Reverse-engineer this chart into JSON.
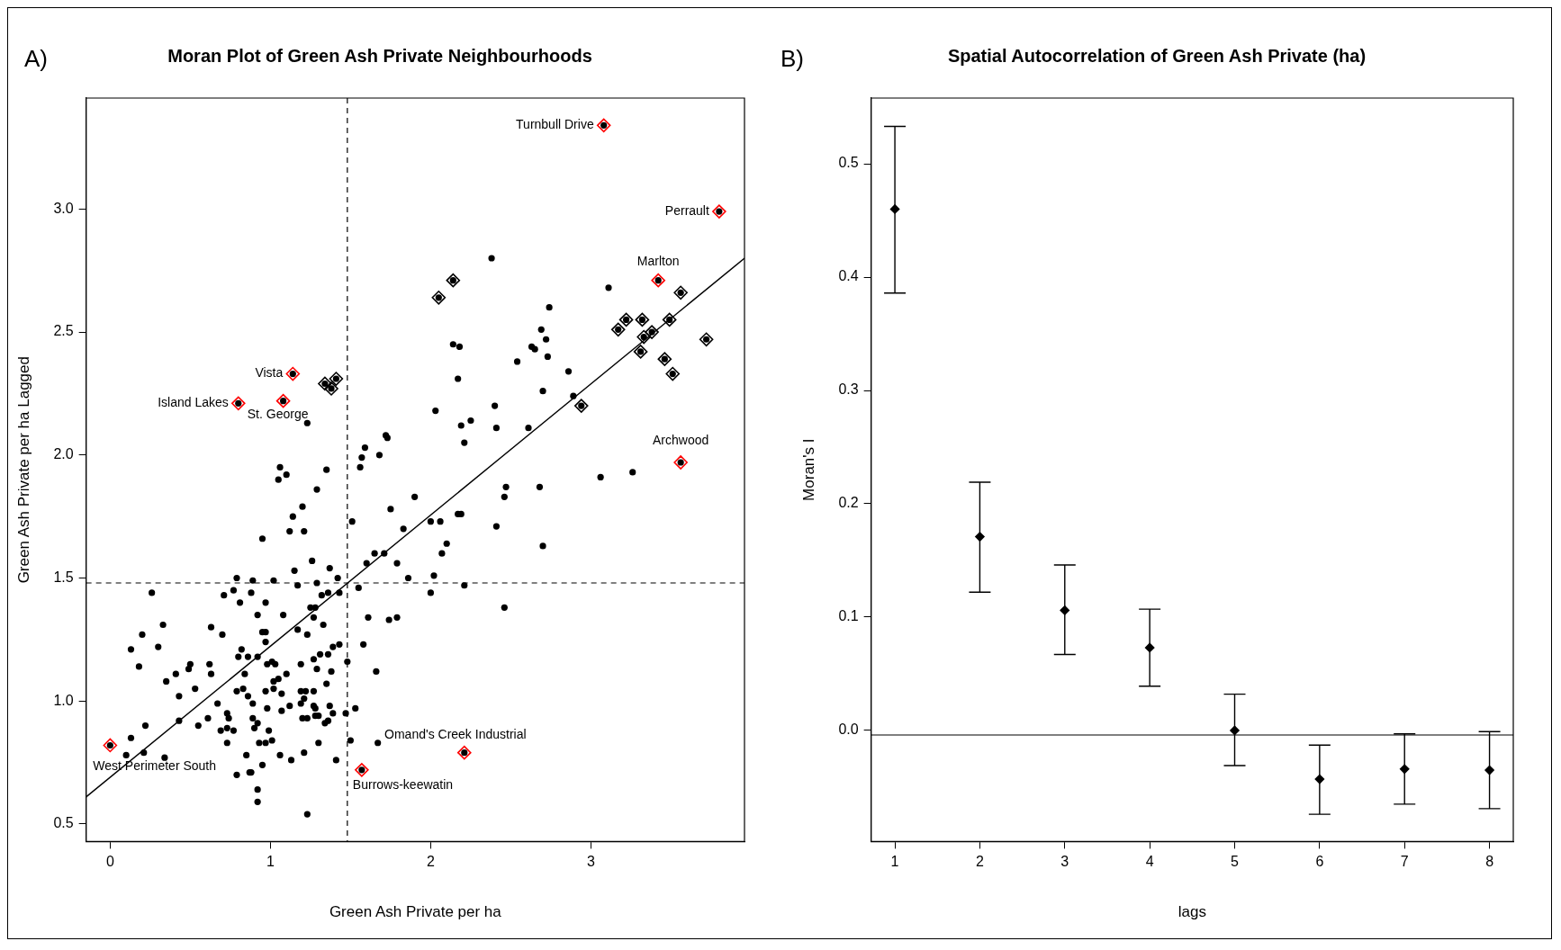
{
  "chart_data": [
    {
      "type": "scatter",
      "title": "Moran Plot of Green Ash Private Neighbourhoods",
      "xlabel": "Green Ash Private per ha",
      "ylabel": "Green Ash Private per ha Lagged",
      "xlim": [
        -0.15,
        3.958
      ],
      "xticks": [
        0,
        1,
        2,
        3
      ],
      "ylim": [
        0.429,
        3.451
      ],
      "yticks": [
        0.5,
        {
          "value": 1,
          "label": "1.0"
        },
        1.5,
        {
          "value": 2,
          "label": "2.0"
        },
        2.5,
        {
          "value": 3,
          "label": "3.0"
        }
      ],
      "ref_lines": [
        {
          "axis": "x",
          "value": 1.48,
          "line_style": "dashed"
        },
        {
          "axis": "y",
          "value": 1.48,
          "line_style": "dashed"
        }
      ],
      "annotations": [
        "A)",
        {
          "text": "Turnbull Drive",
          "x": 3.08,
          "y": 3.34
        },
        {
          "text": "Perrault",
          "x": 3.8,
          "y": 2.99
        },
        {
          "text": "Marlton",
          "x": 3.42,
          "y": 2.71
        },
        {
          "text": "Archwood",
          "x": 3.56,
          "y": 1.97
        },
        {
          "text": "Vista",
          "x": 1.14,
          "y": 2.33
        },
        {
          "text": "Island Lakes",
          "x": 0.8,
          "y": 2.21
        },
        {
          "text": "St. George",
          "x": 1.08,
          "y": 2.22
        },
        {
          "text": "West Perimeter South",
          "x": 0,
          "y": 0.82
        },
        {
          "text": "Omand's Creek Industrial",
          "x": 2.21,
          "y": 0.79
        },
        {
          "text": "Burrows-keewatin",
          "x": 1.57,
          "y": 0.72
        }
      ],
      "series": [
        {
          "color": "#000000",
          "marker": "circle",
          "x": [
            1.72,
            1.73,
            1.59,
            2.21,
            1.57,
            1.68,
            1.56,
            1.06,
            1.05,
            1.1,
            1.35,
            1.29,
            1.2,
            1.14,
            1.12,
            1.21,
            0.95,
            1.9,
            1.75,
            1.51,
            2.0,
            2.06,
            2.17,
            1.83,
            2.1,
            2.07,
            1.65,
            1.71,
            1.6,
            1.79,
            1.26,
            1.15,
            1.37,
            1.86,
            2.02,
            0.79,
            0.89,
            1.02,
            1.29,
            1.42,
            1.17,
            1.55,
            2.0,
            0.77,
            0.88,
            0.26,
            0.71,
            0.81,
            0.97,
            1.36,
            1.43,
            1.32,
            0.92,
            1.08,
            1.25,
            1.28,
            1.27,
            1.61,
            1.74,
            1.79,
            0.33,
            0.63,
            0.7,
            0.2,
            0.95,
            0.97,
            1.17,
            1.23,
            1.33,
            0.97,
            0.13,
            0.3,
            0.82,
            0.8,
            0.86,
            0.92,
            1.31,
            1.36,
            1.39,
            1.43,
            1.58,
            0.18,
            0.5,
            0.49,
            0.62,
            0.63,
            0.41,
            0.35,
            0.84,
            0.98,
            1.01,
            1.03,
            1.19,
            1.27,
            1.29,
            1.38,
            1.48,
            1.66,
            1.1,
            1.05,
            1.02,
            0.53,
            0.43,
            0.79,
            0.83,
            0.86,
            0.97,
            1.02,
            1.07,
            1.19,
            1.22,
            1.27,
            1.35,
            0.67,
            0.89,
            0.98,
            1.12,
            1.07,
            1.19,
            1.21,
            1.27,
            1.28,
            1.37,
            1.39,
            1.47,
            1.53,
            0.73,
            0.74,
            0.89,
            0.61,
            0.55,
            0.43,
            0.22,
            1.2,
            1.23,
            1.28,
            1.3,
            1.36,
            1.34,
            0.92,
            0.9,
            0.69,
            0.73,
            0.77,
            0.99,
            0.13,
            0.73,
            0.93,
            0.97,
            1.01,
            1.3,
            1.5,
            1.67,
            0.1,
            0.21,
            0.34,
            0.85,
            1.06,
            1.13,
            1.21,
            1.41,
            0.95,
            0.79,
            0.87,
            0.88,
            0.92,
            0.92,
            1.23,
            3.06,
            3.26,
            2.47,
            2.46,
            2.68,
            2.19,
            2.41,
            2.7,
            2.21,
            2.46,
            1.23,
            2.14,
            2.18,
            2.17,
            2.03,
            2.19,
            2.38,
            3.11,
            2.74,
            2.69,
            2.72,
            2.63,
            2.65,
            2.73,
            2.54,
            2.86,
            2.7,
            2.4,
            2.89,
            2.25,
            2.41,
            2.61,
            1.34,
            1.38,
            1.41,
            2.14,
            2.05,
            3.56,
            3.22,
            3.17,
            3.32,
            3.49,
            3.38,
            3.33,
            3.31,
            3.46,
            3.51,
            3.72,
            2.94,
            3.08,
            3.8,
            3.42,
            3.56,
            1.14,
            0.8,
            1.08,
            0,
            2.21,
            1.57
          ],
          "values": [
            2.08,
            2.07,
            2.03,
            2.05,
            1.99,
            2.0,
            1.95,
            1.95,
            1.9,
            1.92,
            1.94,
            1.86,
            1.79,
            1.75,
            1.69,
            1.69,
            1.66,
            1.83,
            1.78,
            1.73,
            1.73,
            1.73,
            1.76,
            1.7,
            1.64,
            1.6,
            1.6,
            1.6,
            1.56,
            1.56,
            1.57,
            1.53,
            1.54,
            1.5,
            1.51,
            1.5,
            1.49,
            1.49,
            1.48,
            1.5,
            1.47,
            1.46,
            1.44,
            1.45,
            1.44,
            1.44,
            1.43,
            1.4,
            1.4,
            1.44,
            1.44,
            1.43,
            1.35,
            1.35,
            1.38,
            1.38,
            1.34,
            1.34,
            1.33,
            1.34,
            1.31,
            1.3,
            1.27,
            1.27,
            1.28,
            1.28,
            1.29,
            1.27,
            1.31,
            1.24,
            1.21,
            1.22,
            1.21,
            1.18,
            1.18,
            1.18,
            1.19,
            1.19,
            1.22,
            1.23,
            1.23,
            1.14,
            1.15,
            1.13,
            1.15,
            1.11,
            1.11,
            1.08,
            1.11,
            1.15,
            1.16,
            1.15,
            1.15,
            1.17,
            1.13,
            1.12,
            1.16,
            1.12,
            1.11,
            1.09,
            1.08,
            1.05,
            1.02,
            1.04,
            1.05,
            1.02,
            1.04,
            1.05,
            1.03,
            1.04,
            1.04,
            1.04,
            1.07,
            0.99,
            0.99,
            0.97,
            0.98,
            0.96,
            0.99,
            1.01,
            0.98,
            0.97,
            0.98,
            0.95,
            0.95,
            0.97,
            0.95,
            0.93,
            0.93,
            0.93,
            0.9,
            0.92,
            0.9,
            0.93,
            0.93,
            0.94,
            0.94,
            0.92,
            0.91,
            0.91,
            0.89,
            0.88,
            0.89,
            0.88,
            0.88,
            0.85,
            0.83,
            0.83,
            0.83,
            0.84,
            0.83,
            0.84,
            0.83,
            0.78,
            0.79,
            0.77,
            0.78,
            0.78,
            0.76,
            0.79,
            0.76,
            0.74,
            0.7,
            0.71,
            0.71,
            0.64,
            0.59,
            0.54,
            1.91,
            1.93,
            1.87,
            1.83,
            1.87,
            1.76,
            1.71,
            1.63,
            1.47,
            1.38,
            2.13,
            2.45,
            2.44,
            2.31,
            2.18,
            2.12,
            2.8,
            2.68,
            2.6,
            2.51,
            2.47,
            2.44,
            2.43,
            2.4,
            2.38,
            2.34,
            2.26,
            2.2,
            2.24,
            2.14,
            2.11,
            2.11,
            2.29,
            2.27,
            2.31,
            2.71,
            2.64,
            2.66,
            2.55,
            2.51,
            2.55,
            2.55,
            2.5,
            2.48,
            2.42,
            2.39,
            2.33,
            2.47,
            2.2,
            3.34,
            2.99,
            2.71,
            1.97,
            2.33,
            2.21,
            2.22,
            0.82,
            0.79,
            0.72
          ]
        },
        {
          "color": "#000000",
          "marker": "diamond",
          "x": [
            1.34,
            1.38,
            1.41,
            2.14,
            2.05,
            3.56,
            3.22,
            3.17,
            3.32,
            3.49,
            3.38,
            3.33,
            3.31,
            3.46,
            3.51,
            3.72,
            2.94
          ],
          "values": [
            2.29,
            2.27,
            2.31,
            2.71,
            2.64,
            2.66,
            2.55,
            2.51,
            2.55,
            2.55,
            2.5,
            2.48,
            2.42,
            2.39,
            2.33,
            2.47,
            2.2
          ]
        },
        {
          "color": "#ff0000",
          "marker": "diamond",
          "x": [
            3.08,
            3.8,
            3.42,
            3.56,
            1.14,
            0.8,
            1.08,
            0,
            2.21,
            1.57
          ],
          "values": [
            3.34,
            2.99,
            2.71,
            1.97,
            2.33,
            2.21,
            2.22,
            0.82,
            0.79,
            0.72
          ]
        },
        {
          "type": "line",
          "color": "#000000",
          "marker": "none",
          "x": [
            -0.15,
            3.958
          ],
          "values": [
            0.61,
            2.8
          ]
        }
      ]
    },
    {
      "type": "scatter",
      "title": "Spatial Autocorrelation of Green Ash Private (ha)",
      "xlabel": "lags",
      "ylabel": "Moran's I",
      "annotations": [
        "B)"
      ],
      "xlim": [
        0.72,
        8.28
      ],
      "xticks": [
        1,
        2,
        3,
        4,
        5,
        6,
        7,
        8
      ],
      "ylim": [
        -0.098,
        0.558
      ],
      "yticks": [
        {
          "value": 0,
          "label": "0.0"
        },
        0.1,
        0.2,
        0.3,
        0.4,
        0.5
      ],
      "ref_lines": [
        {
          "axis": "y",
          "value": -0.004
        }
      ],
      "series": [
        {
          "color": "#000000",
          "marker": "diamond",
          "x": [
            1,
            2,
            3,
            4,
            5,
            6,
            7,
            8
          ],
          "values": [
            0.46,
            0.171,
            0.106,
            0.073,
            0.0,
            -0.043,
            -0.034,
            -0.035
          ],
          "errors": [
            [
              0.386,
              0.533
            ],
            [
              0.122,
              0.219
            ],
            [
              0.067,
              0.146
            ],
            [
              0.039,
              0.107
            ],
            [
              -0.031,
              0.032
            ],
            [
              -0.074,
              -0.013
            ],
            [
              -0.065,
              -0.003
            ],
            [
              -0.069,
              -0.001
            ]
          ]
        }
      ]
    }
  ]
}
